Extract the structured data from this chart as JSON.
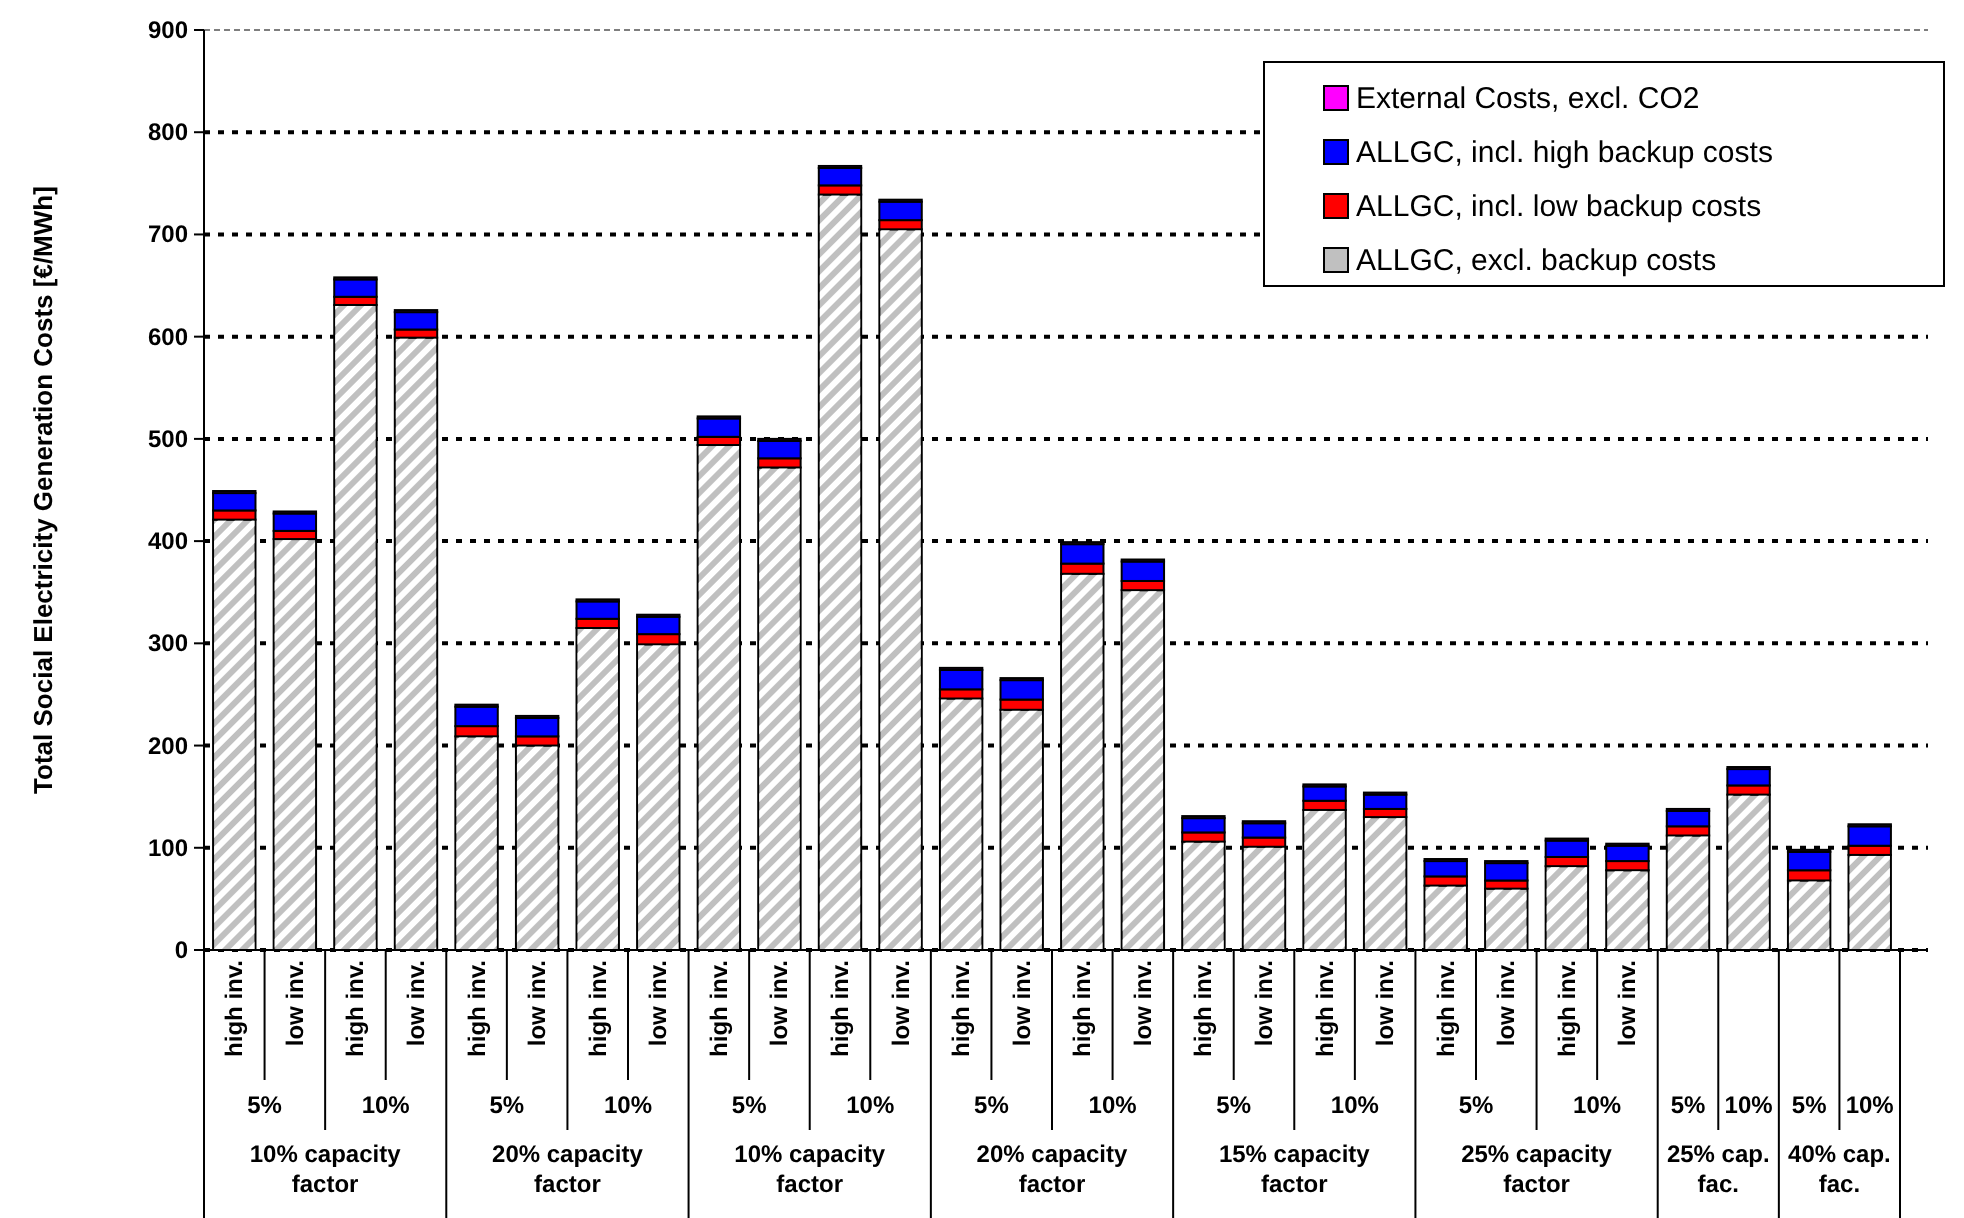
{
  "chart_data": {
    "type": "bar",
    "stacked": true,
    "ylabel": "Total Social Electricity Generation Costs [€/MWh]",
    "categories": [
      "high inv.",
      "low inv.",
      "high inv.",
      "low inv.",
      "high inv.",
      "low inv.",
      "high inv.",
      "low inv.",
      "high inv.",
      "low inv.",
      "high inv.",
      "low inv.",
      "high inv.",
      "low inv.",
      "high inv.",
      "low inv.",
      "high inv.",
      "low inv.",
      "high inv.",
      "low inv.",
      "high inv.",
      "low inv.",
      "high inv.",
      "low inv.",
      null,
      null,
      null,
      null
    ],
    "series": [
      {
        "name": "ALLGC, excl. backup costs",
        "color": "#c0c0c0",
        "values": [
          421,
          402,
          631,
          599,
          209,
          200,
          315,
          299,
          494,
          472,
          739,
          705,
          246,
          235,
          368,
          352,
          106,
          101,
          137,
          130,
          63,
          60,
          82,
          78,
          112,
          152,
          68,
          93
        ]
      },
      {
        "name": "ALLGC, incl. low backup costs",
        "color": "#ff0000",
        "values": [
          9,
          8,
          8,
          8,
          10,
          9,
          9,
          10,
          8,
          9,
          9,
          9,
          9,
          10,
          10,
          9,
          9,
          9,
          9,
          8,
          9,
          8,
          9,
          9,
          9,
          9,
          10,
          9
        ]
      },
      {
        "name": "ALLGC, incl. high backup costs",
        "color": "#0000ff",
        "values": [
          17,
          17,
          17,
          17,
          19,
          18,
          17,
          17,
          18,
          17,
          17,
          18,
          19,
          19,
          19,
          19,
          14,
          14,
          14,
          14,
          15,
          17,
          16,
          15,
          15,
          16,
          18,
          19
        ]
      },
      {
        "name": "External Costs, excl. CO2",
        "color": "#ff00ff",
        "values": [
          2,
          2,
          2,
          2,
          2,
          2,
          2,
          2,
          2,
          2,
          2,
          2,
          2,
          2,
          2,
          2,
          2,
          2,
          2,
          2,
          2,
          2,
          2,
          2,
          2,
          2,
          2,
          2
        ]
      }
    ],
    "ylim": [
      0,
      900
    ],
    "yticks": [
      0,
      100,
      200,
      300,
      400,
      500,
      600,
      700,
      800,
      900
    ],
    "grid": "y",
    "legend": "top right",
    "annotations": [
      "5%",
      "10%",
      "5%",
      "10%",
      "5%",
      "10%",
      "5%",
      "10%",
      "5%",
      "10%",
      "5%",
      "10%",
      "5%",
      "10%",
      "5%",
      "10%",
      "10% capacity factor",
      "20% capacity factor",
      "10% capacity factor",
      "20% capacity factor",
      "15% capacity factor",
      "25% capacity factor",
      "25% cap. fac.",
      "40% cap. fac."
    ]
  }
}
